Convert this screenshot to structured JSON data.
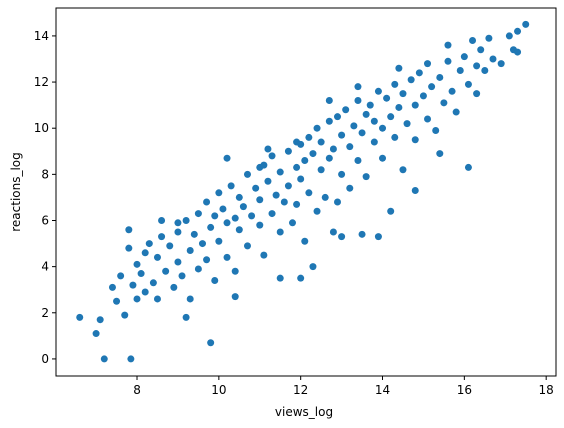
{
  "chart_data": {
    "type": "scatter",
    "xlabel": "views_log",
    "ylabel": "reactions_log",
    "color": "#1f77b4",
    "xlim": [
      6.02,
      18.24
    ],
    "ylim": [
      -0.74,
      15.21
    ],
    "xticks": [
      8,
      10,
      12,
      14,
      16,
      18
    ],
    "yticks": [
      0,
      2,
      4,
      6,
      8,
      10,
      12,
      14
    ],
    "x": [
      6.6,
      7.2,
      7.85,
      9.8,
      7.0,
      7.1,
      17.5,
      17.3,
      17.2,
      16.3,
      14.2,
      15.4,
      16.1,
      14.8,
      12.0,
      12.3,
      11.5,
      10.4,
      9.2,
      7.8,
      13.9,
      13.5,
      13.0,
      12.8,
      8.6,
      9.0,
      11.0,
      10.2,
      11.2,
      11.9,
      12.7,
      13.4,
      14.4,
      15.6,
      16.2,
      16.6,
      17.1,
      16.5,
      17.3,
      7.4,
      7.5,
      7.6,
      7.7,
      7.8,
      7.9,
      8.0,
      8.0,
      8.1,
      8.2,
      8.2,
      8.3,
      8.4,
      8.5,
      8.5,
      8.6,
      8.7,
      8.8,
      8.9,
      9.0,
      9.0,
      9.1,
      9.2,
      9.3,
      9.3,
      9.4,
      9.5,
      9.5,
      9.6,
      9.7,
      9.7,
      9.8,
      9.9,
      9.9,
      10.0,
      10.0,
      10.1,
      10.2,
      10.2,
      10.3,
      10.4,
      10.4,
      10.5,
      10.5,
      10.6,
      10.7,
      10.7,
      10.8,
      10.9,
      11.0,
      11.0,
      11.1,
      11.1,
      11.2,
      11.3,
      11.3,
      11.4,
      11.5,
      11.5,
      11.6,
      11.7,
      11.7,
      11.8,
      11.9,
      11.9,
      12.0,
      12.0,
      12.1,
      12.1,
      12.2,
      12.2,
      12.3,
      12.4,
      12.4,
      12.5,
      12.5,
      12.6,
      12.7,
      12.7,
      12.8,
      12.9,
      12.9,
      13.0,
      13.0,
      13.1,
      13.2,
      13.2,
      13.3,
      13.4,
      13.4,
      13.5,
      13.6,
      13.6,
      13.7,
      13.8,
      13.8,
      13.9,
      14.0,
      14.0,
      14.1,
      14.2,
      14.3,
      14.3,
      14.4,
      14.5,
      14.5,
      14.6,
      14.7,
      14.8,
      14.8,
      14.9,
      15.0,
      15.1,
      15.1,
      15.2,
      15.3,
      15.4,
      15.5,
      15.6,
      15.7,
      15.8,
      15.9,
      16.0,
      16.1,
      16.3,
      16.4,
      16.7,
      16.9
    ],
    "values": [
      1.8,
      0,
      0,
      0.7,
      1.1,
      1.7,
      14.5,
      14.2,
      13.4,
      11.5,
      6.4,
      8.9,
      8.3,
      7.3,
      3.5,
      4.0,
      3.5,
      2.7,
      1.8,
      5.6,
      5.3,
      5.4,
      5.3,
      5.5,
      6.0,
      5.9,
      8.3,
      8.7,
      9.1,
      9.4,
      11.2,
      11.8,
      12.6,
      13.6,
      13.8,
      13.9,
      14.0,
      12.5,
      13.3,
      3.1,
      2.5,
      3.6,
      1.9,
      4.8,
      3.2,
      2.6,
      4.1,
      3.7,
      2.9,
      4.6,
      5.0,
      3.3,
      4.4,
      2.6,
      5.3,
      3.8,
      4.9,
      3.1,
      4.2,
      5.5,
      3.6,
      6.0,
      4.7,
      2.6,
      5.4,
      3.9,
      6.3,
      5.0,
      4.3,
      6.8,
      5.7,
      3.4,
      6.2,
      5.1,
      7.2,
      6.5,
      4.4,
      5.9,
      7.5,
      6.1,
      3.8,
      5.6,
      7.0,
      6.6,
      8.0,
      4.9,
      6.2,
      7.4,
      5.8,
      6.9,
      8.4,
      4.5,
      7.7,
      6.3,
      8.8,
      7.1,
      5.5,
      8.1,
      6.8,
      9.0,
      7.5,
      5.9,
      8.3,
      6.7,
      9.3,
      7.8,
      8.6,
      5.1,
      9.6,
      7.2,
      8.9,
      6.4,
      10.0,
      8.2,
      9.4,
      7.0,
      10.3,
      8.7,
      9.1,
      6.8,
      10.5,
      9.7,
      8.0,
      10.8,
      9.2,
      7.4,
      10.1,
      8.6,
      11.2,
      9.8,
      10.6,
      7.9,
      11.0,
      9.4,
      10.3,
      11.6,
      10.0,
      8.7,
      11.3,
      10.5,
      9.6,
      11.9,
      10.9,
      8.2,
      11.5,
      10.2,
      12.1,
      11.0,
      9.5,
      12.4,
      11.4,
      10.4,
      12.8,
      11.8,
      9.9,
      12.2,
      11.1,
      12.9,
      11.6,
      10.7,
      12.5,
      13.1,
      11.9,
      12.7,
      13.4,
      13.0,
      12.8
    ]
  }
}
